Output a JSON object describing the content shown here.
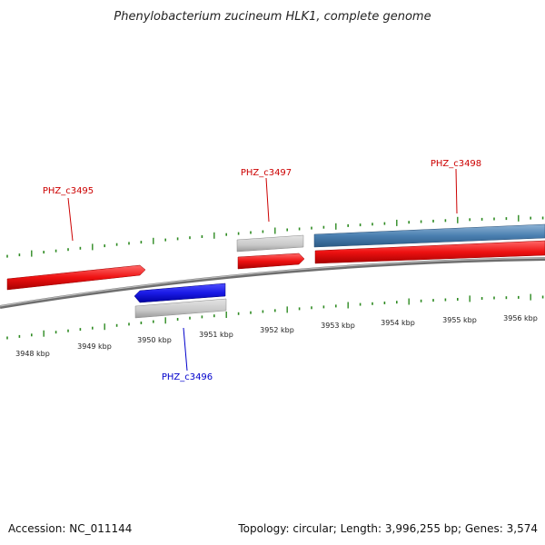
{
  "header": {
    "title": "Phenylobacterium zucineum HLK1, complete genome"
  },
  "footer": {
    "accession": "Accession: NC_011144",
    "summary": "Topology: circular; Length: 3,996,255 bp; Genes: 3,574"
  },
  "colors": {
    "forward_gene": "#ee1111",
    "reverse_gene": "#1a1ae6",
    "rna_gene": "#4a7fb0",
    "gray_feature": "#c8c8c8",
    "axis": "#808080",
    "tick": "#2e8b22"
  },
  "ruler": {
    "labels": [
      "3948 kbp",
      "3949 kbp",
      "3950 kbp",
      "3951 kbp",
      "3952 kbp",
      "3953 kbp",
      "3954 kbp",
      "3955 kbp",
      "3956 kbp"
    ]
  },
  "genes": [
    {
      "id": "PHZ_c3495",
      "label": "PHZ_c3495",
      "strand": "forward",
      "color": "#ee1111"
    },
    {
      "id": "PHZ_c3496",
      "label": "PHZ_c3496",
      "strand": "reverse",
      "color": "#1a1ae6"
    },
    {
      "id": "PHZ_c3497",
      "label": "PHZ_c3497",
      "strand": "forward",
      "color": "#ee1111"
    },
    {
      "id": "PHZ_c3498",
      "label": "PHZ_c3498",
      "strand": "forward",
      "color": "#ee1111"
    }
  ]
}
